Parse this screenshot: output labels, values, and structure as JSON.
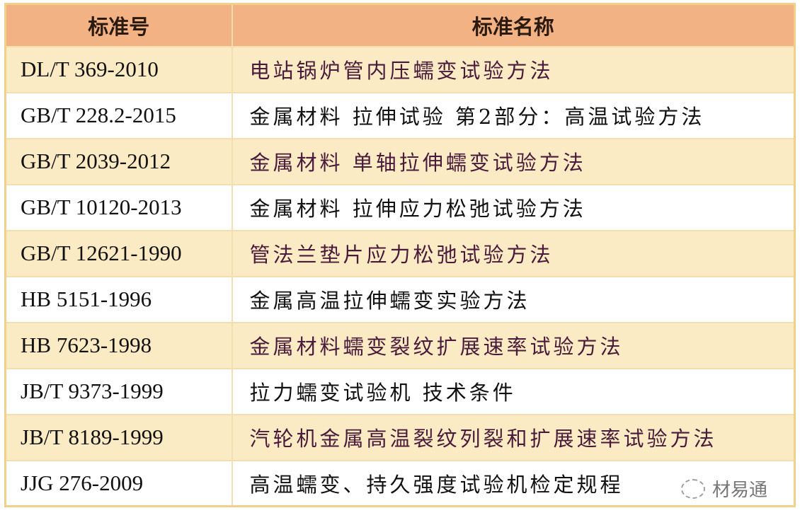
{
  "table": {
    "headers": [
      "标准号",
      "标准名称"
    ],
    "rows": [
      {
        "code": "DL/T 369-2010",
        "name": "电站锅炉管内压蠕变试验方法"
      },
      {
        "code": "GB/T 228.2-2015",
        "name": "金属材料 拉伸试验 第2部分：高温试验方法"
      },
      {
        "code": "GB/T 2039-2012",
        "name": "金属材料 单轴拉伸蠕变试验方法"
      },
      {
        "code": "GB/T 10120-2013",
        "name": "金属材料 拉伸应力松弛试验方法"
      },
      {
        "code": "GB/T 12621-1990",
        "name": "管法兰垫片应力松弛试验方法"
      },
      {
        "code": "HB 5151-1996",
        "name": "金属高温拉伸蠕变实验方法"
      },
      {
        "code": "HB 7623-1998",
        "name": "金属材料蠕变裂纹扩展速率试验方法"
      },
      {
        "code": "JB/T 9373-1999",
        "name": "拉力蠕变试验机 技术条件"
      },
      {
        "code": "JB/T 8189-1999",
        "name": "汽轮机金属高温裂纹列裂和扩展速率试验方法"
      },
      {
        "code": "JJG 276-2009",
        "name": "高温蠕变、持久强度试验机检定规程"
      }
    ]
  },
  "watermark": {
    "text": "材易通",
    "icon": "wechat-icon"
  },
  "colors": {
    "header": "#f3b283",
    "highlight_row": "#fbebc4",
    "border": "#f2d08a"
  }
}
